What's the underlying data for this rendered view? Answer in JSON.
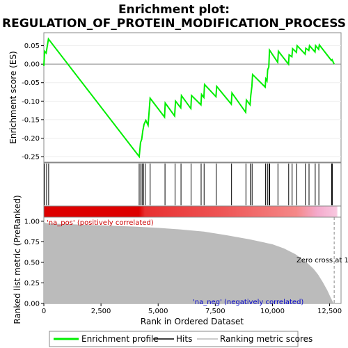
{
  "title_line1": "Enrichment plot:",
  "title_line2": "REGULATION_OF_PROTEIN_MODIFICATION_PROCESS",
  "chart_data": {
    "type": "line",
    "es_panel": {
      "ylabel": "Enrichment score (ES)",
      "ylim": [
        -0.265,
        0.085
      ],
      "yticks": [
        0.05,
        0.0,
        -0.05,
        -0.1,
        -0.15,
        -0.2,
        -0.25
      ],
      "ytick_labels": [
        "0.05",
        "0.00",
        "-0.05",
        "-0.10",
        "-0.15",
        "-0.20",
        "-0.25"
      ],
      "series_name": "Enrichment profile",
      "color": "#00ee00",
      "x": [
        0,
        30,
        100,
        200,
        4170,
        4230,
        4280,
        4330,
        4380,
        4460,
        4560,
        4650,
        5280,
        5310,
        5720,
        5760,
        5990,
        6020,
        6430,
        6460,
        6870,
        6900,
        7000,
        7030,
        7530,
        7560,
        8200,
        8230,
        8830,
        8860,
        9020,
        9050,
        9100,
        9130,
        9680,
        9710,
        9760,
        9790,
        9840,
        9870,
        10230,
        10260,
        10700,
        10730,
        10850,
        10880,
        11050,
        11080,
        11430,
        11460,
        11590,
        11620,
        11860,
        11890,
        12020,
        12050,
        12580,
        12610,
        12700
      ],
      "y": [
        -0.005,
        0.035,
        0.03,
        0.068,
        -0.25,
        -0.212,
        -0.203,
        -0.18,
        -0.163,
        -0.152,
        -0.165,
        -0.092,
        -0.143,
        -0.105,
        -0.14,
        -0.1,
        -0.118,
        -0.085,
        -0.12,
        -0.085,
        -0.11,
        -0.082,
        -0.09,
        -0.055,
        -0.088,
        -0.06,
        -0.108,
        -0.078,
        -0.13,
        -0.097,
        -0.11,
        -0.085,
        -0.06,
        -0.028,
        -0.062,
        -0.04,
        -0.045,
        -0.015,
        -0.008,
        0.038,
        0.005,
        0.035,
        0.0,
        0.025,
        0.02,
        0.042,
        0.032,
        0.05,
        0.027,
        0.043,
        0.037,
        0.05,
        0.033,
        0.05,
        0.04,
        0.052,
        0.01,
        0.012,
        0.0
      ]
    },
    "hits": [
      30,
      120,
      210,
      4170,
      4240,
      4300,
      4360,
      4430,
      4650,
      5300,
      5740,
      6000,
      6440,
      6880,
      7010,
      7540,
      8210,
      8840,
      9030,
      9110,
      9700,
      9780,
      9850,
      9880,
      10240,
      10710,
      10860,
      11060,
      11440,
      11600,
      11870,
      12030,
      12590,
      12620
    ],
    "rank_panel": {
      "ylabel": "Ranked list metric (PreRanked)",
      "xlabel": "Rank in Ordered Dataset",
      "ylim": [
        0.0,
        1.05
      ],
      "yticks": [
        1.0,
        0.75,
        0.5,
        0.25,
        0.0
      ],
      "ytick_labels": [
        "1.00",
        "0.75",
        "0.50",
        "0.25",
        "0.00"
      ],
      "xlim": [
        0,
        13000
      ],
      "xticks": [
        0,
        2500,
        5000,
        7500,
        10000,
        12500
      ],
      "xtick_labels": [
        "0",
        "2,500",
        "5,000",
        "7,500",
        "10,000",
        "12,500"
      ],
      "metric_x": [
        0,
        20,
        60,
        150,
        400,
        1000,
        2000,
        3000,
        4000,
        5000,
        6000,
        7000,
        8000,
        9000,
        9500,
        10000,
        10500,
        11000,
        11500,
        11800,
        12000,
        12200,
        12400,
        12550,
        12650,
        12700
      ],
      "metric_y": [
        1.0,
        0.99,
        0.98,
        0.975,
        0.97,
        0.965,
        0.955,
        0.945,
        0.935,
        0.92,
        0.9,
        0.875,
        0.83,
        0.78,
        0.75,
        0.72,
        0.67,
        0.6,
        0.5,
        0.42,
        0.35,
        0.26,
        0.16,
        0.07,
        0.015,
        0.0
      ],
      "annotation_pos": "'na_pos' (positively correlated)",
      "annotation_neg": "'na_neg' (negatively correlated)",
      "zero_cross_label": "Zero cross at 1",
      "zero_cross_x": 12700
    },
    "legend": {
      "items": [
        "Enrichment profile",
        "Hits",
        "Ranking metric scores"
      ],
      "colors": [
        "#00ee00",
        "#000000",
        "#bbbbbb"
      ]
    }
  }
}
